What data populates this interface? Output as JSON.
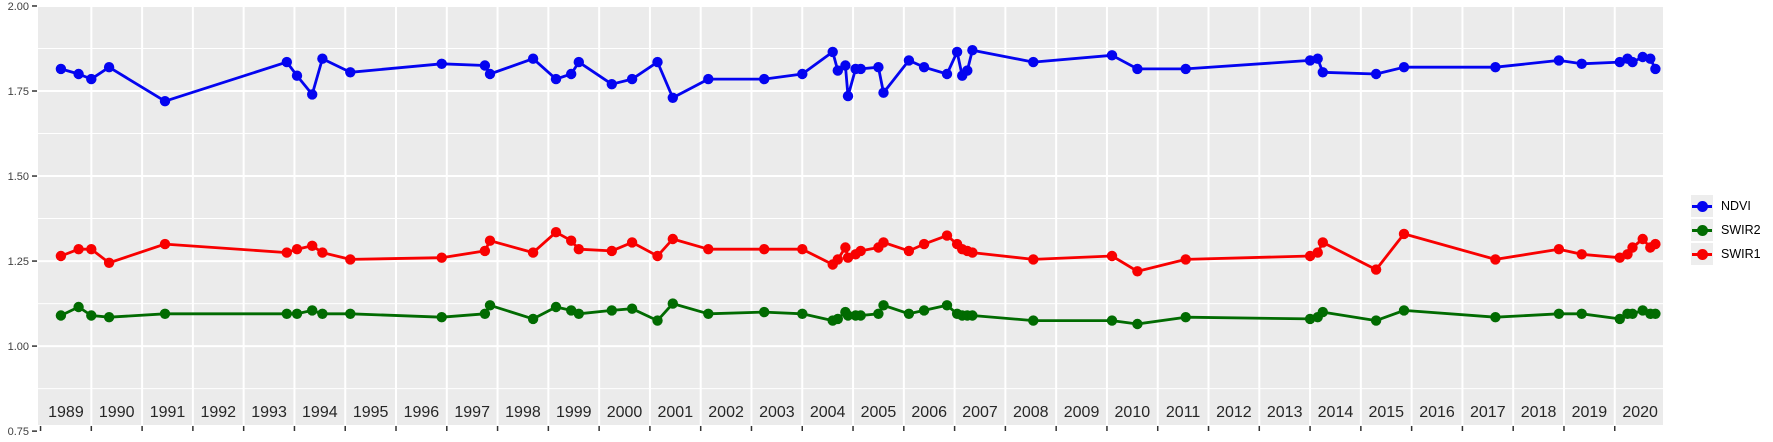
{
  "figure": {
    "background": "#FFFFFF",
    "panel_background": "#EBEBEB",
    "grid_color": "#FFFFFF",
    "axis_text_color_x": "#262626",
    "axis_text_color_y": "#404040",
    "tick_color": "#333333"
  },
  "legend": {
    "position": "right",
    "entries": [
      {
        "label": "NDVI",
        "color": "#0404F0"
      },
      {
        "label": "SWIR2",
        "color": "#016B01"
      },
      {
        "label": "SWIR1",
        "color": "#F80000"
      }
    ]
  },
  "chart_data": {
    "type": "line",
    "title": "",
    "xlabel": "",
    "ylabel": "",
    "grid": true,
    "legend_position": "right",
    "xlim": [
      1988.95,
      2020.95
    ],
    "ylim": [
      0.768,
      1.997
    ],
    "x_tick_years": [
      1989,
      1990,
      1991,
      1992,
      1993,
      1994,
      1995,
      1996,
      1997,
      1998,
      1999,
      2000,
      2001,
      2002,
      2003,
      2004,
      2005,
      2006,
      2007,
      2008,
      2009,
      2010,
      2011,
      2012,
      2013,
      2014,
      2015,
      2016,
      2017,
      2018,
      2019,
      2020
    ],
    "y_ticks": [
      {
        "label": "2.00",
        "value": 2.0
      },
      {
        "label": "1.75",
        "value": 1.75
      },
      {
        "label": "1.50",
        "value": 1.5
      },
      {
        "label": "1.25",
        "value": 1.25
      },
      {
        "label": "1.00",
        "value": 1.0
      },
      {
        "label": "0.75",
        "value": 0.75
      }
    ],
    "x": [
      1989.4,
      1989.75,
      1990.0,
      1990.35,
      1991.45,
      1993.85,
      1994.05,
      1994.35,
      1994.55,
      1995.1,
      1996.9,
      1997.75,
      1997.85,
      1998.7,
      1999.15,
      1999.45,
      1999.6,
      2000.25,
      2000.65,
      2001.15,
      2001.45,
      2002.15,
      2003.25,
      2004.0,
      2004.6,
      2004.7,
      2004.85,
      2004.9,
      2005.05,
      2005.15,
      2005.5,
      2005.6,
      2006.1,
      2006.4,
      2006.85,
      2007.05,
      2007.15,
      2007.25,
      2007.35,
      2008.55,
      2010.1,
      2010.6,
      2011.55,
      2014.0,
      2014.15,
      2014.25,
      2015.3,
      2015.85,
      2017.65,
      2018.9,
      2019.35,
      2020.1,
      2020.25,
      2020.35,
      2020.55,
      2020.7,
      2020.8
    ],
    "series": [
      {
        "name": "NDVI",
        "color": "#0404F0",
        "values": [
          1.815,
          1.8,
          1.785,
          1.82,
          1.72,
          1.835,
          1.795,
          1.74,
          1.845,
          1.805,
          1.83,
          1.825,
          1.8,
          1.845,
          1.785,
          1.8,
          1.835,
          1.77,
          1.785,
          1.835,
          1.73,
          1.785,
          1.785,
          1.8,
          1.865,
          1.81,
          1.825,
          1.735,
          1.815,
          1.815,
          1.82,
          1.745,
          1.84,
          1.82,
          1.8,
          1.865,
          1.795,
          1.81,
          1.87,
          1.835,
          1.855,
          1.815,
          1.815,
          1.84,
          1.845,
          1.805,
          1.8,
          1.82,
          1.82,
          1.84,
          1.83,
          1.835,
          1.845,
          1.835,
          1.85,
          1.845,
          1.815
        ]
      },
      {
        "name": "SWIR2",
        "color": "#016B01",
        "values": [
          1.09,
          1.115,
          1.09,
          1.085,
          1.095,
          1.095,
          1.095,
          1.105,
          1.095,
          1.095,
          1.085,
          1.095,
          1.12,
          1.08,
          1.115,
          1.105,
          1.095,
          1.105,
          1.11,
          1.075,
          1.125,
          1.095,
          1.1,
          1.095,
          1.075,
          1.08,
          1.1,
          1.09,
          1.09,
          1.09,
          1.095,
          1.12,
          1.095,
          1.105,
          1.12,
          1.095,
          1.09,
          1.09,
          1.09,
          1.075,
          1.075,
          1.065,
          1.085,
          1.08,
          1.085,
          1.1,
          1.075,
          1.105,
          1.085,
          1.095,
          1.095,
          1.08,
          1.095,
          1.095,
          1.105,
          1.095,
          1.095
        ]
      },
      {
        "name": "SWIR1",
        "color": "#F80000",
        "values": [
          1.265,
          1.285,
          1.285,
          1.245,
          1.3,
          1.275,
          1.285,
          1.295,
          1.275,
          1.255,
          1.26,
          1.28,
          1.31,
          1.275,
          1.335,
          1.31,
          1.285,
          1.28,
          1.305,
          1.265,
          1.315,
          1.285,
          1.285,
          1.285,
          1.24,
          1.255,
          1.29,
          1.26,
          1.27,
          1.28,
          1.29,
          1.305,
          1.28,
          1.3,
          1.325,
          1.3,
          1.285,
          1.28,
          1.275,
          1.255,
          1.265,
          1.22,
          1.255,
          1.265,
          1.275,
          1.305,
          1.225,
          1.33,
          1.255,
          1.285,
          1.27,
          1.26,
          1.27,
          1.29,
          1.315,
          1.29,
          1.3
        ]
      }
    ]
  }
}
